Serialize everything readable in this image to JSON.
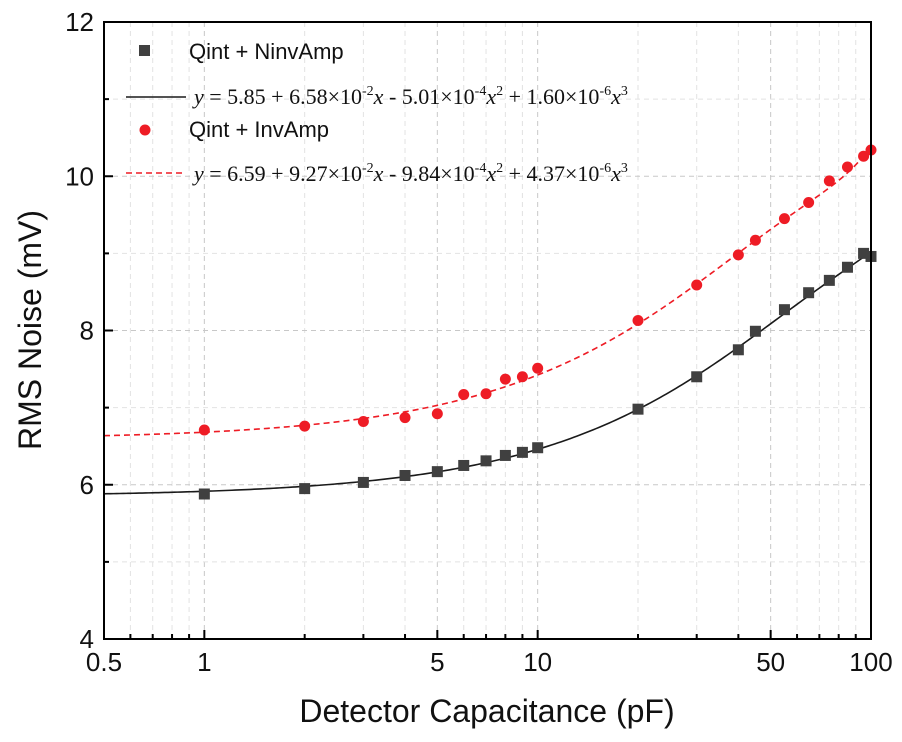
{
  "chart_data": {
    "type": "scatter",
    "xscale": "log",
    "xlabel": "Detector Capacitance (pF)",
    "ylabel": "RMS Noise (mV)",
    "xlim": [
      0.5,
      100
    ],
    "ylim": [
      4,
      12
    ],
    "xticks": [
      {
        "value": 0.5,
        "label": "0.5"
      },
      {
        "value": 1,
        "label": "1"
      },
      {
        "value": 5,
        "label": "5"
      },
      {
        "value": 10,
        "label": "10"
      },
      {
        "value": 50,
        "label": "50"
      },
      {
        "value": 100,
        "label": "100"
      }
    ],
    "yticks": [
      {
        "value": 4,
        "label": "4"
      },
      {
        "value": 6,
        "label": "6"
      },
      {
        "value": 8,
        "label": "8"
      },
      {
        "value": 10,
        "label": "10"
      },
      {
        "value": 12,
        "label": "12"
      }
    ],
    "grid": true,
    "legend_position": "top-left",
    "series": [
      {
        "name": "Qint + NinvAmp",
        "color": "#404040",
        "marker": "square",
        "x": [
          1,
          2,
          3,
          4,
          5,
          6,
          7,
          8,
          9,
          10,
          20,
          30,
          40,
          45,
          55,
          65,
          75,
          85,
          95,
          100
        ],
        "y": [
          5.88,
          5.95,
          6.03,
          6.12,
          6.17,
          6.25,
          6.31,
          6.38,
          6.42,
          6.48,
          6.98,
          7.4,
          7.75,
          7.99,
          8.27,
          8.49,
          8.65,
          8.82,
          9.0,
          8.96
        ]
      },
      {
        "name": "Qint + InvAmp",
        "color": "#ee1c25",
        "marker": "circle",
        "x": [
          1,
          2,
          3,
          4,
          5,
          6,
          7,
          8,
          9,
          10,
          20,
          30,
          40,
          45,
          55,
          65,
          75,
          85,
          95,
          100
        ],
        "y": [
          6.71,
          6.76,
          6.82,
          6.87,
          6.92,
          7.17,
          7.18,
          7.37,
          7.4,
          7.51,
          8.13,
          8.59,
          8.98,
          9.17,
          9.45,
          9.66,
          9.94,
          10.12,
          10.26,
          10.34
        ]
      }
    ],
    "fits": [
      {
        "series": "Qint + NinvAmp",
        "color": "#1a1a1a",
        "style": "solid",
        "coefficients": [
          5.85,
          0.0658,
          -0.000501,
          1.6e-06
        ],
        "equation_parts": [
          "y",
          " = 5.85 + 6.58×10",
          "-2",
          "x",
          " - 5.01×10",
          "-4",
          "x",
          "2",
          " + 1.60×10",
          "-6",
          "x",
          "3"
        ]
      },
      {
        "series": "Qint + InvAmp",
        "color": "#ee1c25",
        "style": "dashed",
        "coefficients": [
          6.59,
          0.0927,
          -0.000984,
          4.37e-06
        ],
        "equation_parts": [
          "y",
          " = 6.59 + 9.27×10",
          "-2",
          "x",
          " - 9.84×10",
          "-4",
          "x",
          "2",
          " + 4.37×10",
          "-6",
          "x",
          "3"
        ]
      }
    ]
  }
}
